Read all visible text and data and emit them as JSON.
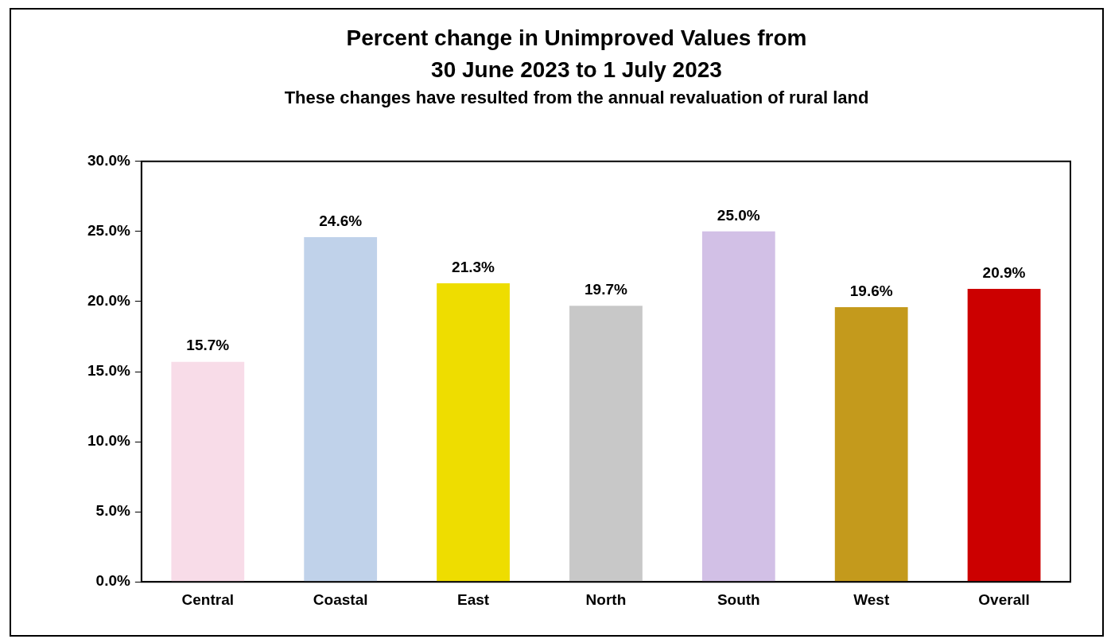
{
  "chart_data": {
    "type": "bar",
    "title": "Percent change in Unimproved Values from\n30 June 2023 to 1 July 2023",
    "subtitle": "These changes have resulted from the annual revaluation of rural land",
    "categories": [
      "Central",
      "Coastal",
      "East",
      "North",
      "South",
      "West",
      "Overall"
    ],
    "values": [
      15.7,
      24.6,
      21.3,
      19.7,
      25.0,
      19.6,
      20.9
    ],
    "colors": [
      "#f8dce8",
      "#c0d2ea",
      "#eedd00",
      "#c8c8c8",
      "#d2c0e6",
      "#c49a1c",
      "#cc0000"
    ],
    "value_labels": [
      "15.7%",
      "24.6%",
      "21.3%",
      "19.7%",
      "25.0%",
      "19.6%",
      "20.9%"
    ],
    "ylim": [
      0,
      30
    ],
    "yticks": [
      {
        "value": 0,
        "label": "0.0%"
      },
      {
        "value": 5,
        "label": "5.0%"
      },
      {
        "value": 10,
        "label": "10.0%"
      },
      {
        "value": 15,
        "label": "15.0%"
      },
      {
        "value": 20,
        "label": "20.0%"
      },
      {
        "value": 25,
        "label": "25.0%"
      },
      {
        "value": 30,
        "label": "30.0%"
      }
    ],
    "grid": false,
    "legend": false
  }
}
